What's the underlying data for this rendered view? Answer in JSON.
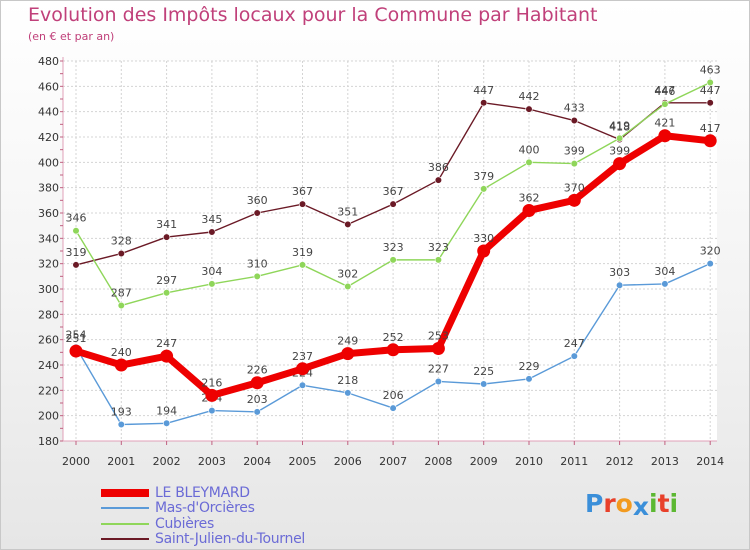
{
  "title": "Evolution des Impôts locaux pour la Commune par Habitant",
  "subtitle": "(en € et par an)",
  "logo": {
    "letters": [
      "P",
      "r",
      "o",
      "x",
      "i",
      "t",
      "i"
    ],
    "colors": [
      "#3b8fd9",
      "#e8402a",
      "#f29a1f",
      "#3b8fd9",
      "#5cb832",
      "#e8402a",
      "#5cb832"
    ]
  },
  "chart_data": {
    "type": "line",
    "x": [
      "2000",
      "2001",
      "2002",
      "2003",
      "2004",
      "2005",
      "2006",
      "2007",
      "2008",
      "2009",
      "2010",
      "2011",
      "2012",
      "2013",
      "2014"
    ],
    "ylim": [
      180,
      480
    ],
    "yticks": [
      "180",
      "200",
      "220",
      "240",
      "260",
      "280",
      "300",
      "320",
      "340",
      "360",
      "380",
      "400",
      "420",
      "440",
      "460",
      "480"
    ],
    "grid": true,
    "legend_position": "bottom-left",
    "series": [
      {
        "name": "Saint-Julien-du-Tournel",
        "color": "#6b1a26",
        "values": [
          319,
          328,
          341,
          345,
          360,
          367,
          351,
          367,
          386,
          447,
          442,
          433,
          418,
          447,
          447
        ],
        "labels": [
          "319",
          "328",
          "341",
          "345",
          "360",
          "367",
          "351",
          "367",
          "386",
          "447",
          "442",
          "433",
          "418",
          "447",
          "447"
        ]
      },
      {
        "name": "Cubières",
        "color": "#8fd65a",
        "values": [
          346,
          287,
          297,
          304,
          310,
          319,
          302,
          323,
          323,
          379,
          400,
          399,
          419,
          446,
          463
        ],
        "labels": [
          "346",
          "287",
          "297",
          "304",
          "310",
          "319",
          "302",
          "323",
          "323",
          "379",
          "400",
          "399",
          "419",
          "446",
          "463"
        ]
      },
      {
        "name": "Mas-d'Orcières",
        "color": "#5a9ad8",
        "values": [
          254,
          193,
          194,
          204,
          203,
          224,
          218,
          206,
          227,
          225,
          229,
          247,
          303,
          304,
          320
        ],
        "labels": [
          "254",
          "193",
          "194",
          "204",
          "203",
          "224",
          "218",
          "206",
          "227",
          "225",
          "229",
          "247",
          "303",
          "304",
          "320"
        ]
      },
      {
        "name": "LE BLEYMARD",
        "color": "#ee0000",
        "values": [
          251,
          240,
          247,
          216,
          226,
          237,
          249,
          252,
          253,
          330,
          362,
          370,
          399,
          421,
          417
        ],
        "labels": [
          "251",
          "240",
          "247",
          "216",
          "226",
          "237",
          "249",
          "252",
          "253",
          "330",
          "362",
          "370",
          "399",
          "421",
          "417"
        ]
      }
    ],
    "legend_order": [
      "LE BLEYMARD",
      "Mas-d'Orcières",
      "Cubières",
      "Saint-Julien-du-Tournel"
    ]
  }
}
